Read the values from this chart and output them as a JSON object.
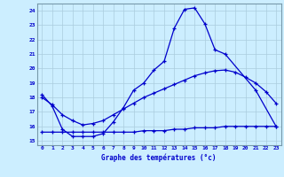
{
  "title": "Graphe des températures (°c)",
  "bg_color": "#cceeff",
  "line_color": "#0000cc",
  "grid_color": "#aaccdd",
  "spine_color": "#7799aa",
  "xlim": [
    -0.5,
    23.5
  ],
  "ylim": [
    14.7,
    24.5
  ],
  "xticks": [
    0,
    1,
    2,
    3,
    4,
    5,
    6,
    7,
    8,
    9,
    10,
    11,
    12,
    13,
    14,
    15,
    16,
    17,
    18,
    19,
    20,
    21,
    22,
    23
  ],
  "yticks": [
    15,
    16,
    17,
    18,
    19,
    20,
    21,
    22,
    23,
    24
  ],
  "line1_x": [
    0,
    1,
    2,
    3,
    4,
    5,
    6,
    7,
    8,
    9,
    10,
    11,
    12,
    13,
    14,
    15,
    16,
    17,
    18,
    21,
    23
  ],
  "line1_y": [
    18.2,
    17.4,
    15.8,
    15.3,
    15.3,
    15.3,
    15.5,
    16.3,
    17.3,
    18.5,
    19.0,
    19.9,
    20.5,
    22.8,
    24.1,
    24.2,
    23.1,
    21.3,
    21.0,
    18.5,
    16.0
  ],
  "line2_x": [
    0,
    1,
    2,
    3,
    4,
    5,
    6,
    7,
    8,
    9,
    10,
    11,
    12,
    13,
    14,
    15,
    16,
    17,
    18,
    19,
    20,
    21,
    22,
    23
  ],
  "line2_y": [
    18.0,
    17.5,
    16.8,
    16.4,
    16.1,
    16.2,
    16.4,
    16.8,
    17.2,
    17.6,
    18.0,
    18.3,
    18.6,
    18.9,
    19.2,
    19.5,
    19.7,
    19.85,
    19.9,
    19.75,
    19.4,
    19.0,
    18.4,
    17.6
  ],
  "line3_x": [
    0,
    1,
    2,
    3,
    4,
    5,
    6,
    7,
    8,
    9,
    10,
    11,
    12,
    13,
    14,
    15,
    16,
    17,
    18,
    19,
    20,
    21,
    22,
    23
  ],
  "line3_y": [
    15.6,
    15.6,
    15.6,
    15.6,
    15.6,
    15.6,
    15.6,
    15.6,
    15.6,
    15.6,
    15.7,
    15.7,
    15.7,
    15.8,
    15.8,
    15.9,
    15.9,
    15.9,
    16.0,
    16.0,
    16.0,
    16.0,
    16.0,
    16.0
  ]
}
